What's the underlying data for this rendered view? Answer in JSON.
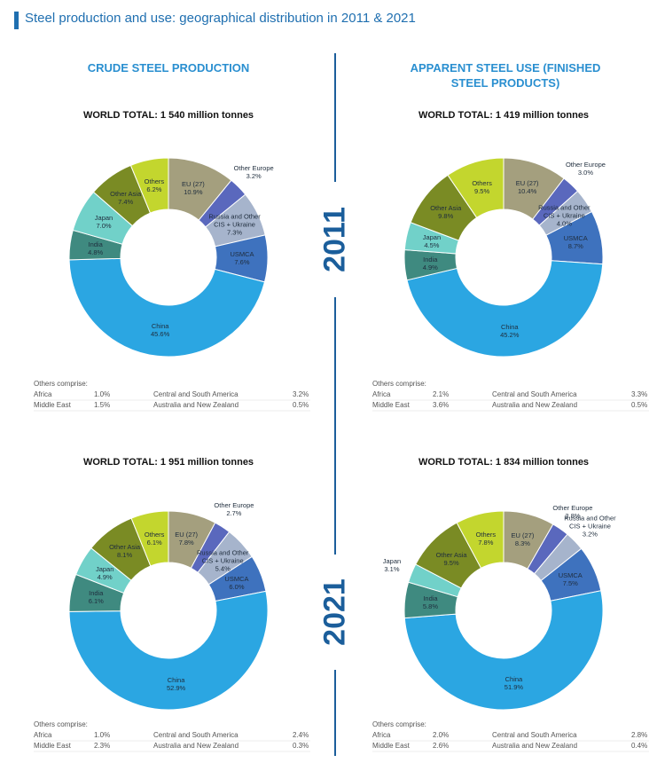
{
  "title": "Steel production and use: geographical distribution in 2011 & 2021",
  "columns": [
    "CRUDE STEEL PRODUCTION",
    "APPARENT STEEL USE (FINISHED STEEL PRODUCTS)"
  ],
  "years": [
    "2011",
    "2021"
  ],
  "chart_data": [
    {
      "type": "pie",
      "title": "WORLD TOTAL: 1 540 million tonnes",
      "categories": [
        "EU (27)",
        "Other Europe",
        "Russia and Other CIS + Ukraine",
        "USMCA",
        "China",
        "India",
        "Japan",
        "Other Asia",
        "Others"
      ],
      "values": [
        10.9,
        3.2,
        7.3,
        7.6,
        45.6,
        4.8,
        7.0,
        7.4,
        6.2
      ],
      "value_labels": [
        "10.9%",
        "3.2%",
        "7.3%",
        "7.6%",
        "45.6%",
        "4.8%",
        "7.0%",
        "7.4%",
        "6.2%"
      ],
      "colors": [
        "#a49f7e",
        "#5a68bd",
        "#a6b4cc",
        "#3e72be",
        "#2ba6e2",
        "#3f8a80",
        "#71d1c9",
        "#7a8b24",
        "#c3d62e"
      ],
      "others": {
        "title": "Others comprise:",
        "rows": [
          [
            "Africa",
            "1.0%",
            "Central and South America",
            "3.2%"
          ],
          [
            "Middle East",
            "1.5%",
            "Australia and New Zealand",
            "0.5%"
          ]
        ]
      }
    },
    {
      "type": "pie",
      "title": "WORLD TOTAL: 1 419 million tonnes",
      "categories": [
        "EU (27)",
        "Other Europe",
        "Russia and Other CIS + Ukraine",
        "USMCA",
        "China",
        "India",
        "Japan",
        "Other Asia",
        "Others"
      ],
      "values": [
        10.4,
        3.0,
        4.0,
        8.7,
        45.2,
        4.9,
        4.5,
        9.8,
        9.5
      ],
      "value_labels": [
        "10.4%",
        "3.0%",
        "4.0%",
        "8.7%",
        "45.2%",
        "4.9%",
        "4.5%",
        "9.8%",
        "9.5%"
      ],
      "colors": [
        "#a49f7e",
        "#5a68bd",
        "#a6b4cc",
        "#3e72be",
        "#2ba6e2",
        "#3f8a80",
        "#71d1c9",
        "#7a8b24",
        "#c3d62e"
      ],
      "others": {
        "title": "Others comprise:",
        "rows": [
          [
            "Africa",
            "2.1%",
            "Central and South America",
            "3.3%"
          ],
          [
            "Middle East",
            "3.6%",
            "Australia and New Zealand",
            "0.5%"
          ]
        ]
      }
    },
    {
      "type": "pie",
      "title": "WORLD TOTAL: 1 951 million tonnes",
      "categories": [
        "EU (27)",
        "Other Europe",
        "Russia and Other CIS + Ukraine",
        "USMCA",
        "China",
        "India",
        "Japan",
        "Other Asia",
        "Others"
      ],
      "values": [
        7.8,
        2.7,
        5.4,
        6.0,
        52.9,
        6.1,
        4.9,
        8.1,
        6.1
      ],
      "value_labels": [
        "7.8%",
        "2.7%",
        "5.4%",
        "6.0%",
        "52.9%",
        "6.1%",
        "4.9%",
        "8.1%",
        "6.1%"
      ],
      "colors": [
        "#a49f7e",
        "#5a68bd",
        "#a6b4cc",
        "#3e72be",
        "#2ba6e2",
        "#3f8a80",
        "#71d1c9",
        "#7a8b24",
        "#c3d62e"
      ],
      "others": {
        "title": "Others comprise:",
        "rows": [
          [
            "Africa",
            "1.0%",
            "Central and South America",
            "2.4%"
          ],
          [
            "Middle East",
            "2.3%",
            "Australia and New Zealand",
            "0.3%"
          ]
        ]
      }
    },
    {
      "type": "pie",
      "title": "WORLD TOTAL: 1 834 million tonnes",
      "categories": [
        "EU (27)",
        "Other Europe",
        "Russia and Other CIS + Ukraine",
        "USMCA",
        "China",
        "India",
        "Japan",
        "Other Asia",
        "Others"
      ],
      "values": [
        8.3,
        2.8,
        3.2,
        7.5,
        51.9,
        5.8,
        3.1,
        9.5,
        7.8
      ],
      "value_labels": [
        "8.3%",
        "2.8%",
        "3.2%",
        "7.5%",
        "51.9%",
        "5.8%",
        "3.1%",
        "9.5%",
        "7.8%"
      ],
      "colors": [
        "#a49f7e",
        "#5a68bd",
        "#a6b4cc",
        "#3e72be",
        "#2ba6e2",
        "#3f8a80",
        "#71d1c9",
        "#7a8b24",
        "#c3d62e"
      ],
      "others": {
        "title": "Others comprise:",
        "rows": [
          [
            "Africa",
            "2.0%",
            "Central and South America",
            "2.8%"
          ],
          [
            "Middle East",
            "2.6%",
            "Australia and New Zealand",
            "0.4%"
          ]
        ]
      }
    }
  ]
}
